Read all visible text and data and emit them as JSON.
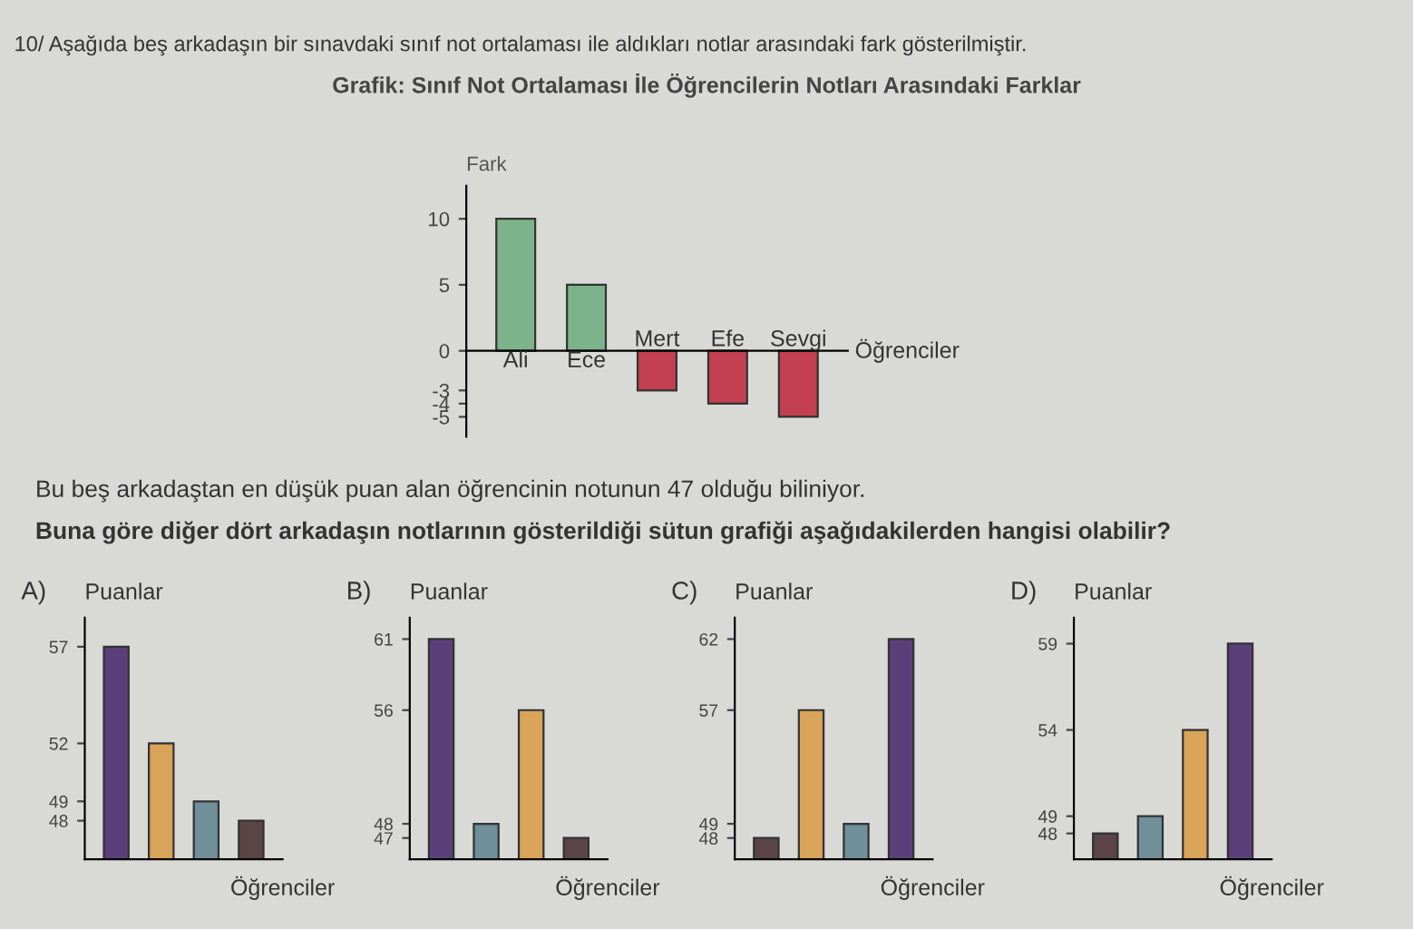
{
  "chart_data": [
    {
      "type": "bar",
      "subtitle": "10/ Aşağıda beş arkadaşın bir sınavdaki sınıf not ortalaması ile aldıkları notlar arasındaki fark gösterilmiştir.",
      "title": "Grafik: Sınıf Not Ortalaması İle Öğrencilerin Notları Arasındaki Farklar",
      "ylabel": "Fark",
      "xlabel": "Öğrenciler",
      "categories": [
        "Ali",
        "Ece",
        "Mert",
        "Efe",
        "Sevgi"
      ],
      "values": [
        10,
        5,
        -3,
        -4,
        -5
      ],
      "colors": [
        "#7db38a",
        "#7db38a",
        "#c2404f",
        "#c2404f",
        "#c2404f"
      ],
      "ylim": [
        -6.5,
        12.5
      ],
      "yticks": [
        10,
        5,
        0,
        -3,
        -4,
        -5
      ],
      "annotations": [
        "Bu beş arkadaştan en düşük puan alan öğrencinin notunun 47 olduğu biliniyor.",
        "Buna göre diğer dört arkadaşın notlarının gösterildiği sütun grafiği aşağıdakilerden hangisi olabilir?"
      ]
    },
    {
      "type": "bar",
      "title": "A)",
      "ylabel": "Puanlar",
      "xlabel": "Öğrenciler",
      "categories": [
        null,
        null,
        null,
        null
      ],
      "values": [
        57,
        52,
        49,
        48
      ],
      "colors": [
        "#5b3f7a",
        "#d9a35a",
        "#6f8f9a",
        "#5a4446"
      ],
      "ylim": [
        46,
        58.5
      ],
      "yticks": [
        57,
        52,
        49,
        48
      ]
    },
    {
      "type": "bar",
      "title": "B)",
      "ylabel": "Puanlar",
      "xlabel": "Öğrenciler",
      "categories": [
        null,
        null,
        null,
        null
      ],
      "values": [
        61,
        48,
        56,
        47
      ],
      "colors": [
        "#5b3f7a",
        "#6f8f9a",
        "#d9a35a",
        "#5a4446"
      ],
      "ylim": [
        45.5,
        62.5
      ],
      "yticks": [
        61,
        56,
        48,
        47
      ]
    },
    {
      "type": "bar",
      "title": "C)",
      "ylabel": "Puanlar",
      "xlabel": "Öğrenciler",
      "categories": [
        null,
        null,
        null,
        null
      ],
      "values": [
        48,
        57,
        49,
        62
      ],
      "colors": [
        "#5a4446",
        "#d9a35a",
        "#6f8f9a",
        "#5b3f7a"
      ],
      "ylim": [
        46.5,
        63.5
      ],
      "yticks": [
        62,
        57,
        49,
        48
      ]
    },
    {
      "type": "bar",
      "title": "D)",
      "ylabel": "Puanlar",
      "xlabel": "Öğrenciler",
      "categories": [
        null,
        null,
        null,
        null
      ],
      "values": [
        48,
        49,
        54,
        59
      ],
      "colors": [
        "#5a4446",
        "#6f8f9a",
        "#d9a35a",
        "#5b3f7a"
      ],
      "ylim": [
        46.5,
        60.5
      ],
      "yticks": [
        59,
        54,
        49,
        48
      ]
    }
  ]
}
